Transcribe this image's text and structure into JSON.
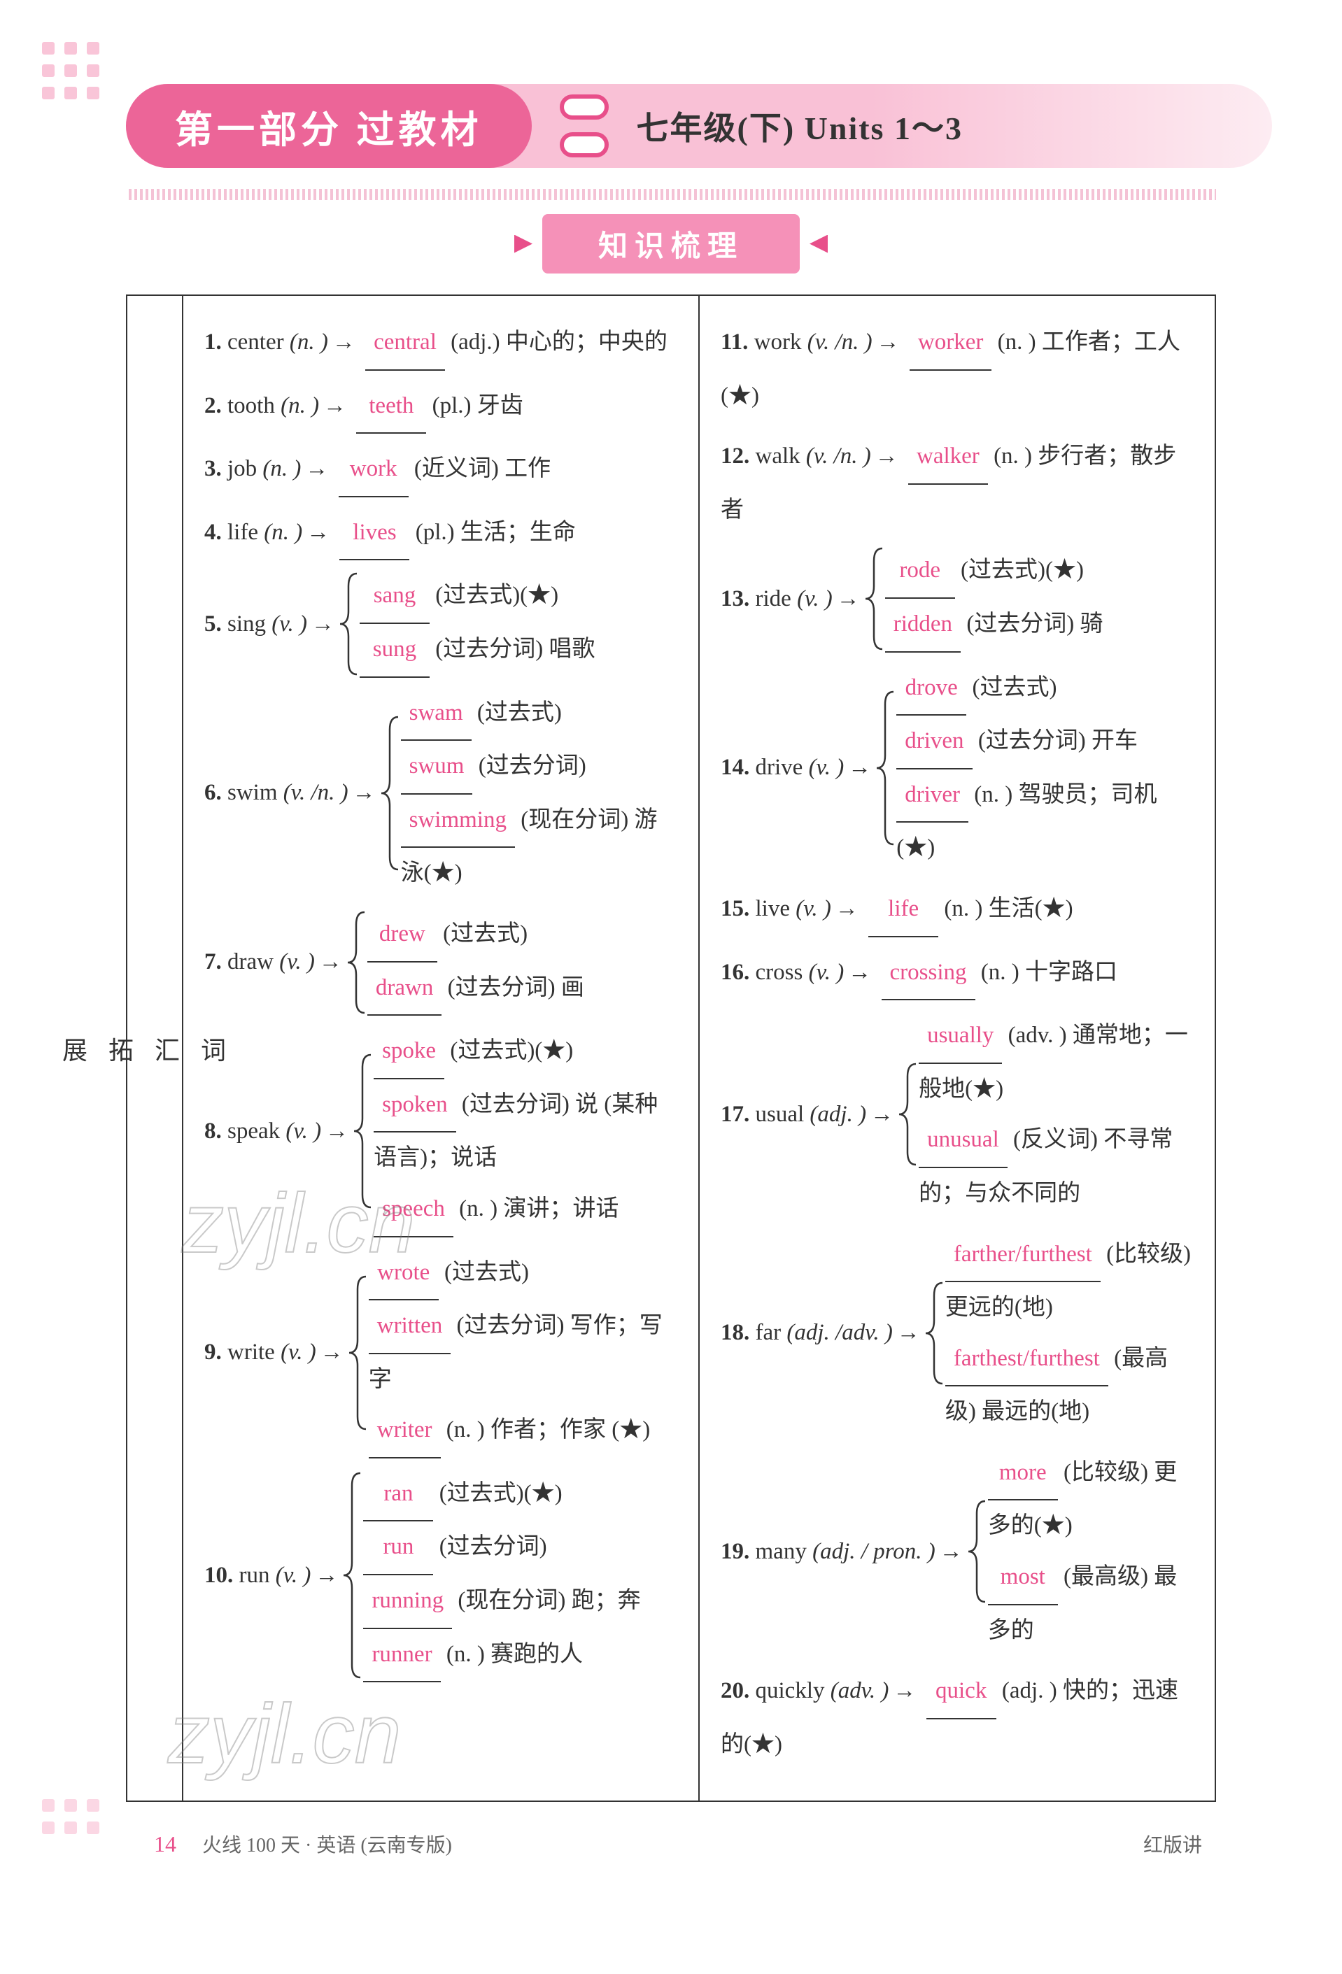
{
  "header": {
    "part_title": "第一部分  过教材",
    "grade_units": "七年级(下)  Units 1～3"
  },
  "section_label": "知识梳理",
  "side_label_chars": [
    "词",
    "汇",
    "拓",
    "展"
  ],
  "answer_color": "#e84f8a",
  "left_column": {
    "e1": {
      "num": "1.",
      "word": "center",
      "pos": "(n. )",
      "ans": "central",
      "def": "(adj.) 中心的；中央的"
    },
    "e2": {
      "num": "2.",
      "word": "tooth",
      "pos": "(n. )",
      "ans": "teeth",
      "def": "(pl.) 牙齿"
    },
    "e3": {
      "num": "3.",
      "word": "job",
      "pos": "(n. )",
      "ans": "work",
      "def": "(近义词) 工作"
    },
    "e4": {
      "num": "4.",
      "word": "life",
      "pos": "(n. )",
      "ans": "lives",
      "def": "(pl.) 生活；生命"
    },
    "e5": {
      "num": "5.",
      "word": "sing",
      "pos": "(v. )",
      "lines": [
        {
          "ans": "sang",
          "def": "(过去式)(★)"
        },
        {
          "ans": "sung",
          "def": "(过去分词) 唱歌"
        }
      ]
    },
    "e6": {
      "num": "6.",
      "word": "swim",
      "pos": "(v. /n. )",
      "lines": [
        {
          "ans": "swam",
          "def": "(过去式)"
        },
        {
          "ans": "swum",
          "def": "(过去分词)"
        },
        {
          "ans": "swimming",
          "def": "(现在分词) 游泳(★)"
        }
      ]
    },
    "e7": {
      "num": "7.",
      "word": "draw",
      "pos": "(v. )",
      "lines": [
        {
          "ans": "drew",
          "def": "(过去式)"
        },
        {
          "ans": "drawn",
          "def": "(过去分词) 画"
        }
      ]
    },
    "e8": {
      "num": "8.",
      "word": "speak",
      "pos": "(v. )",
      "lines": [
        {
          "ans": "spoke",
          "def": "(过去式)(★)"
        },
        {
          "ans": "spoken",
          "def": "(过去分词) 说 (某种语言)；说话"
        },
        {
          "ans": "speech",
          "def": "(n. ) 演讲；讲话"
        }
      ]
    },
    "e9": {
      "num": "9.",
      "word": "write",
      "pos": "(v. )",
      "lines": [
        {
          "ans": "wrote",
          "def": "(过去式)"
        },
        {
          "ans": "written",
          "def": "(过去分词) 写作；写字"
        },
        {
          "ans": "writer",
          "def": "(n. ) 作者；作家 (★)"
        }
      ]
    },
    "e10": {
      "num": "10.",
      "word": "run",
      "pos": "(v. )",
      "lines": [
        {
          "ans": "ran",
          "def": "(过去式)(★)"
        },
        {
          "ans": "run",
          "def": "(过去分词)"
        },
        {
          "ans": "running",
          "def": "(现在分词) 跑；奔"
        },
        {
          "ans": "runner",
          "def": "(n. ) 赛跑的人"
        }
      ]
    }
  },
  "right_column": {
    "e11": {
      "num": "11.",
      "word": "work",
      "pos": "(v. /n. )",
      "ans": "worker",
      "def": "(n. ) 工作者；工人(★)"
    },
    "e12": {
      "num": "12.",
      "word": "walk",
      "pos": "(v. /n. )",
      "ans": "walker",
      "def": "(n. ) 步行者；散步者"
    },
    "e13": {
      "num": "13.",
      "word": "ride",
      "pos": "(v. )",
      "lines": [
        {
          "ans": "rode",
          "def": "(过去式)(★)"
        },
        {
          "ans": "ridden",
          "def": "(过去分词) 骑"
        }
      ]
    },
    "e14": {
      "num": "14.",
      "word": "drive",
      "pos": "(v. )",
      "lines": [
        {
          "ans": "drove",
          "def": "(过去式)"
        },
        {
          "ans": "driven",
          "def": "(过去分词) 开车"
        },
        {
          "ans": "driver",
          "def": "(n. ) 驾驶员；司机(★)"
        }
      ]
    },
    "e15": {
      "num": "15.",
      "word": "live",
      "pos": "(v. )",
      "ans": "life",
      "def": "(n. ) 生活(★)"
    },
    "e16": {
      "num": "16.",
      "word": "cross",
      "pos": "(v. )",
      "ans": "crossing",
      "def": "(n. ) 十字路口"
    },
    "e17": {
      "num": "17.",
      "word": "usual",
      "pos": "(adj. )",
      "lines": [
        {
          "ans": "usually",
          "def": "(adv. ) 通常地；一般地(★)"
        },
        {
          "ans": "unusual",
          "def": "(反义词) 不寻常的；与众不同的"
        }
      ]
    },
    "e18": {
      "num": "18.",
      "word": "far",
      "pos": "(adj. /adv. )",
      "lines": [
        {
          "ans": "farther/furthest",
          "def": "(比较级) 更远的(地)"
        },
        {
          "ans": "farthest/furthest",
          "def": "(最高级) 最远的(地)"
        }
      ]
    },
    "e19": {
      "num": "19.",
      "word": "many",
      "pos": "(adj. / pron. )",
      "lines": [
        {
          "ans": "more",
          "def": "(比较级) 更多的(★)"
        },
        {
          "ans": "most",
          "def": "(最高级) 最多的"
        }
      ]
    },
    "e20": {
      "num": "20.",
      "word": "quickly",
      "pos": "(adv. )",
      "ans": "quick",
      "def": "(adj. ) 快的；迅速的(★)"
    }
  },
  "footer": {
    "page": "14",
    "left_text": "火线 100 天 · 英语 (云南专版)",
    "right_text": "红版讲"
  },
  "watermark": "zyjl.cn"
}
